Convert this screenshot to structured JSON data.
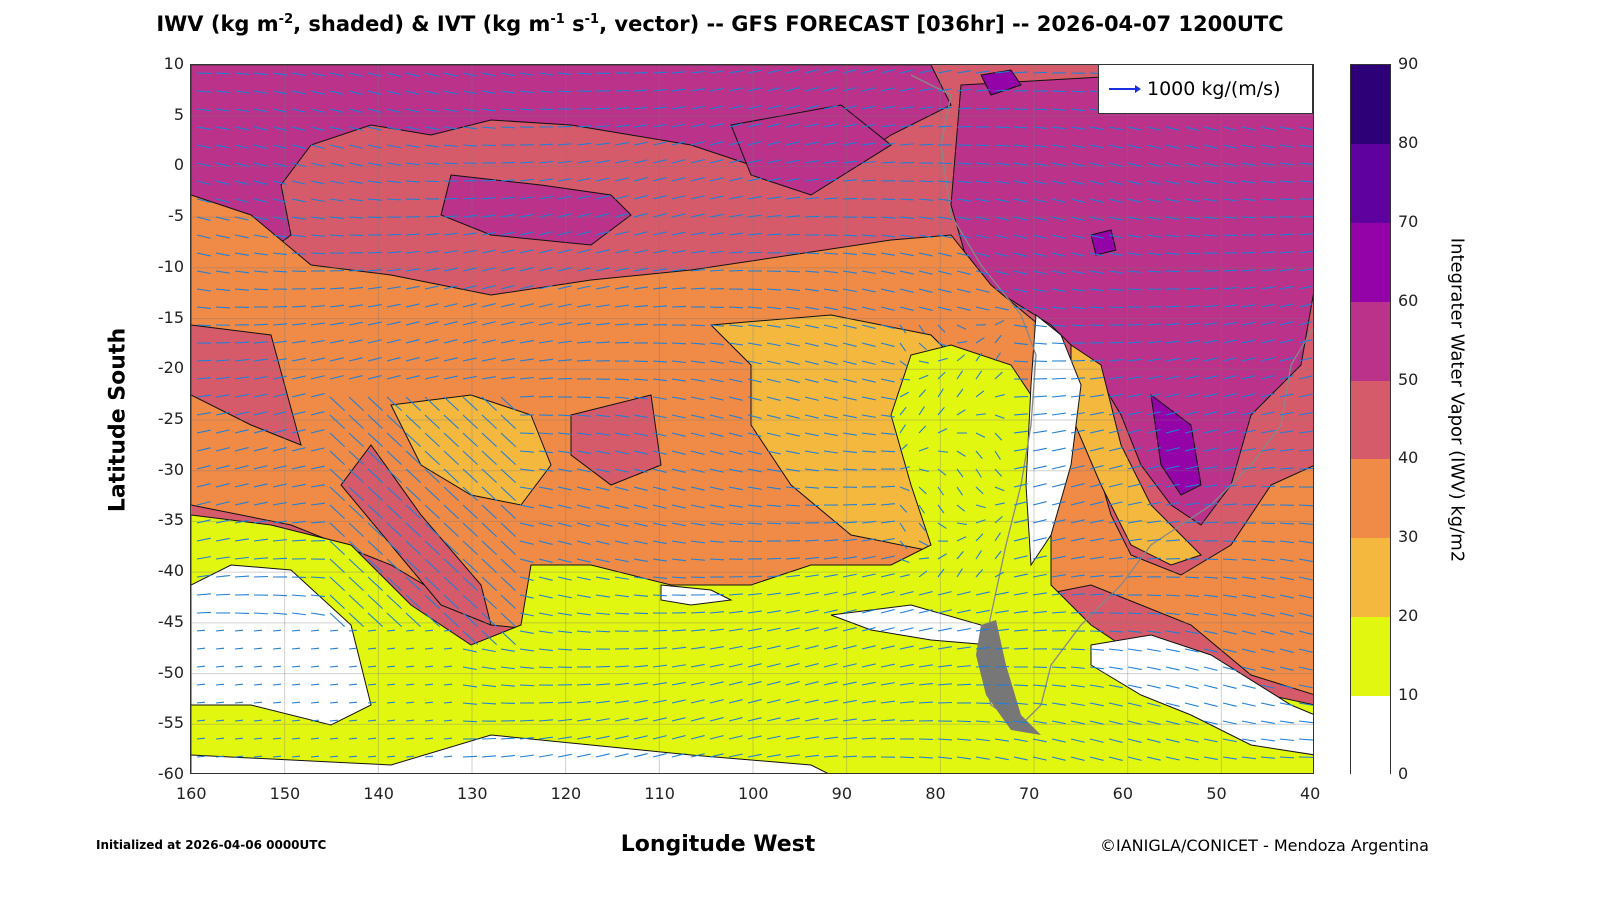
{
  "chart_data": {
    "type": "heatmap",
    "title_parts": [
      "IWV (kg m",
      "-2",
      ", shaded) & IVT (kg m",
      "-1",
      " s",
      "-1",
      ", vector) -- GFS FORECAST [036hr] -- 2026-04-07 1200UTC"
    ],
    "xlabel": "Longitude West",
    "ylabel": "Latitude South",
    "xlim": [
      160,
      40
    ],
    "ylim": [
      -60,
      10
    ],
    "xticks": [
      "160",
      "150",
      "140",
      "130",
      "120",
      "110",
      "100",
      "90",
      "80",
      "70",
      "60",
      "50",
      "40"
    ],
    "yticks": [
      "10",
      "5",
      "0",
      "-5",
      "-10",
      "-15",
      "-20",
      "-25",
      "-30",
      "-35",
      "-40",
      "-45",
      "-50",
      "-55",
      "-60"
    ],
    "grid": true,
    "colorbar": {
      "label": "Integrater Water Vapor (IWV) kg/m2",
      "ticks": [
        "90",
        "80",
        "70",
        "60",
        "50",
        "40",
        "30",
        "20",
        "10",
        "0"
      ],
      "levels": [
        0,
        10,
        20,
        30,
        40,
        50,
        60,
        70,
        80,
        90
      ],
      "colors": [
        "#ffffff",
        "#e2f70f",
        "#f5b83f",
        "#ef8a47",
        "#d65b6a",
        "#ba3289",
        "#9303a7",
        "#5f019f",
        "#2d0078"
      ]
    },
    "legend": {
      "label": "1000 kg/(m/s)",
      "placement": "top-right",
      "vector_color": "#1a2fe0"
    },
    "vector_color": "#1f7fd6"
  },
  "footer": {
    "initialized": "Initialized at 2026-04-06 0000UTC",
    "credit": "©IANIGLA/CONICET - Mendoza Argentina"
  }
}
